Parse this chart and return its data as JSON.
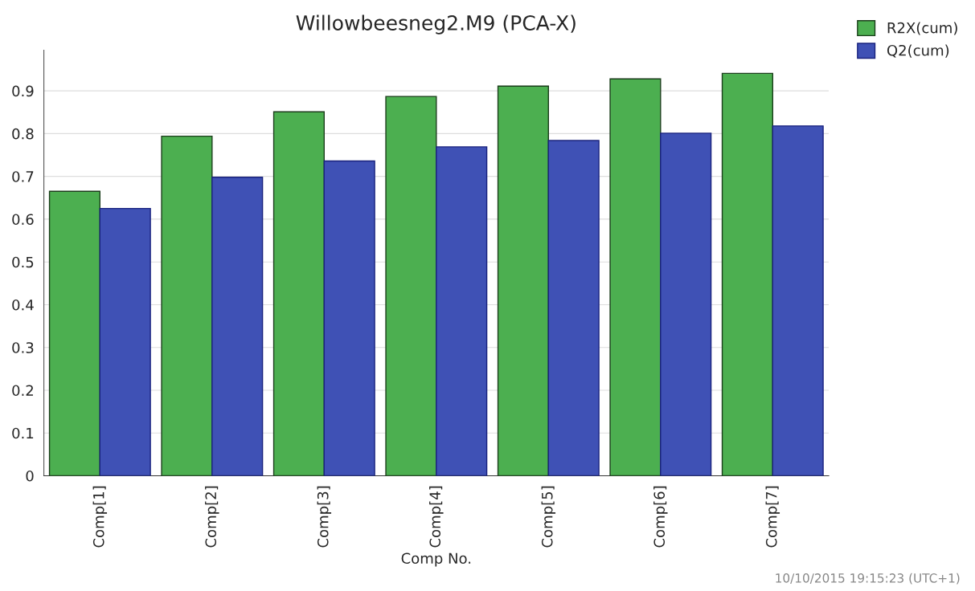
{
  "chart_data": {
    "type": "bar",
    "title": "Willowbeesneg2.M9 (PCA-X)",
    "xlabel": "Comp No.",
    "categories": [
      "Comp[1]",
      "Comp[2]",
      "Comp[3]",
      "Comp[4]",
      "Comp[5]",
      "Comp[6]",
      "Comp[7]"
    ],
    "series": [
      {
        "name": "R2X(cum)",
        "color": "#4caf50",
        "values": [
          0.665,
          0.794,
          0.851,
          0.887,
          0.911,
          0.928,
          0.941
        ]
      },
      {
        "name": "Q2(cum)",
        "color": "#3f51b5",
        "values": [
          0.625,
          0.698,
          0.736,
          0.769,
          0.784,
          0.801,
          0.818
        ]
      }
    ],
    "ylim": [
      0,
      0.995
    ],
    "yticks": [
      0,
      0.1,
      0.2,
      0.3,
      0.4,
      0.5,
      0.6,
      0.7,
      0.8,
      0.9
    ],
    "grid": "y",
    "legend": "top right",
    "annotations": [
      "10/10/2015 19:15:23 (UTC+1)"
    ]
  }
}
